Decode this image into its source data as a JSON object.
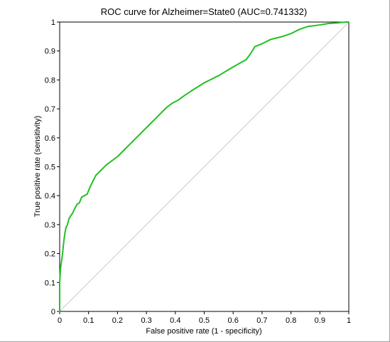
{
  "chart_data": {
    "type": "line",
    "title": "ROC curve for Alzheimer=State0 (AUC=0.741332)",
    "xlabel": "False positive rate (1 - specificity)",
    "ylabel": "True positive rate (sensitivity)",
    "xlim": [
      0,
      1
    ],
    "ylim": [
      0,
      1
    ],
    "xticks": [
      "0",
      "0.1",
      "0.2",
      "0.3",
      "0.4",
      "0.5",
      "0.6",
      "0.7",
      "0.8",
      "0.9",
      "1"
    ],
    "yticks": [
      "0",
      "0.1",
      "0.2",
      "0.3",
      "0.4",
      "0.5",
      "0.6",
      "0.7",
      "0.8",
      "0.9",
      "1"
    ],
    "grid": false,
    "legend": "none",
    "series": [
      {
        "color": "#22c022",
        "x": [
          0.0,
          0.0,
          0.003,
          0.006,
          0.01,
          0.014,
          0.018,
          0.022,
          0.027,
          0.032,
          0.038,
          0.045,
          0.052,
          0.06,
          0.068,
          0.076,
          0.085,
          0.095,
          0.105,
          0.115,
          0.125,
          0.14,
          0.16,
          0.18,
          0.2,
          0.22,
          0.25,
          0.28,
          0.31,
          0.34,
          0.37,
          0.39,
          0.41,
          0.43,
          0.46,
          0.5,
          0.55,
          0.6,
          0.645,
          0.66,
          0.675,
          0.7,
          0.73,
          0.77,
          0.8,
          0.83,
          0.86,
          0.9,
          0.93,
          0.96,
          0.99,
          1.0
        ],
        "y": [
          0.0,
          0.1,
          0.15,
          0.17,
          0.2,
          0.24,
          0.27,
          0.29,
          0.3,
          0.32,
          0.33,
          0.34,
          0.355,
          0.37,
          0.375,
          0.395,
          0.4,
          0.405,
          0.43,
          0.45,
          0.47,
          0.485,
          0.505,
          0.52,
          0.535,
          0.555,
          0.585,
          0.615,
          0.645,
          0.675,
          0.705,
          0.72,
          0.73,
          0.745,
          0.765,
          0.79,
          0.815,
          0.845,
          0.87,
          0.89,
          0.915,
          0.925,
          0.94,
          0.95,
          0.96,
          0.975,
          0.985,
          0.99,
          0.995,
          0.997,
          1.0,
          1.0
        ]
      },
      {
        "color": "#cccccc",
        "x": [
          0,
          1
        ],
        "y": [
          0,
          1
        ]
      }
    ]
  }
}
